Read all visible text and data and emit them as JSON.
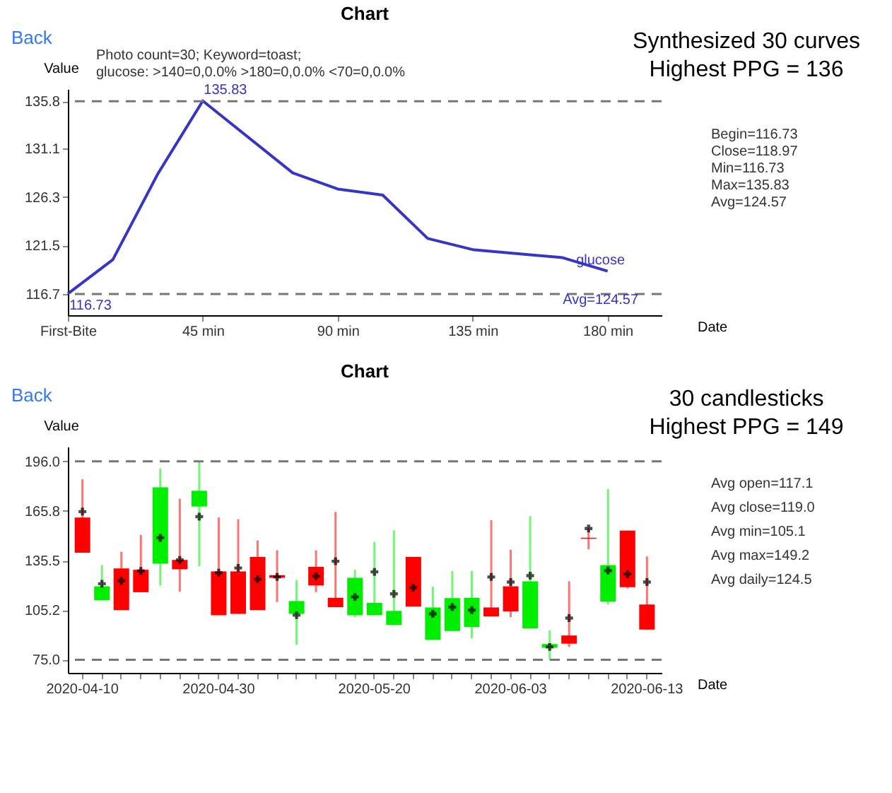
{
  "chart_data": [
    {
      "type": "line",
      "title": "Chart",
      "xlabel": "Date",
      "ylabel": "Value",
      "x": [
        0,
        15,
        30,
        45,
        75,
        90,
        105,
        120,
        135,
        165,
        180
      ],
      "series": [
        {
          "name": "glucose",
          "color": "#3535c8",
          "values": [
            116.73,
            120.1,
            128.6,
            135.83,
            128.7,
            127.1,
            126.5,
            122.2,
            121.1,
            120.3,
            118.97
          ],
          "value_labels": [
            "116.73",
            null,
            null,
            "135.83",
            null,
            null,
            null,
            null,
            null,
            null,
            null
          ]
        }
      ],
      "xlim": [
        0,
        198
      ],
      "xticks": [
        {
          "value": 0,
          "label": "First-Bite"
        },
        {
          "value": 45,
          "label": "45 min"
        },
        {
          "value": 90,
          "label": "90 min"
        },
        {
          "value": 135,
          "label": "135 min"
        },
        {
          "value": 180,
          "label": "180 min"
        }
      ],
      "ylim": [
        114.6,
        137
      ],
      "yticks": [
        116.7,
        121.5,
        126.3,
        131.1,
        135.8
      ],
      "ref_lines": [
        {
          "axis": "y",
          "value": 135.8,
          "color": "#777777",
          "line_style": "dashed"
        },
        {
          "axis": "y",
          "value": 116.7,
          "color": "#777777",
          "line_style": "dashed"
        }
      ],
      "grid": false,
      "legend": false,
      "marker": "none",
      "line_style": "solid",
      "annotations": [
        "Back",
        "Photo count=30; Keyword=toast;",
        "glucose: >140=0,0.0% >180=0,0.0% <70=0,0.0%",
        "Synthesized 30 curves",
        "Highest PPG = 136",
        "Begin=116.73",
        "Close=118.97",
        "Min=116.73",
        "Max=135.83",
        "Avg=124.57",
        {
          "text": "Avg=124.57",
          "x": 180,
          "y": 118.97
        }
      ]
    },
    {
      "type": "candlestick",
      "title": "Chart",
      "xlabel": "Date",
      "ylabel": "Value",
      "categories": [
        "2020-04-10",
        null,
        null,
        null,
        null,
        null,
        null,
        "2020-04-30",
        null,
        null,
        null,
        null,
        null,
        null,
        null,
        "2020-05-20",
        null,
        null,
        null,
        null,
        null,
        null,
        "2020-06-03",
        null,
        null,
        null,
        null,
        null,
        null,
        "2020-06-13"
      ],
      "ohlc": [
        [
          161.8,
          185.1,
          140.3,
          140.3
        ],
        [
          111.3,
          132.8,
          111.3,
          119.8
        ],
        [
          130.7,
          140.8,
          105.3,
          105.3
        ],
        [
          129.9,
          151.2,
          116.2,
          116.2
        ],
        [
          133.6,
          191.6,
          120.3,
          180.2
        ],
        [
          135.9,
          173.2,
          116.5,
          130.2
        ],
        [
          168.5,
          195.5,
          132.0,
          178.1
        ],
        [
          128.9,
          161.8,
          102.2,
          102.2
        ],
        [
          128.9,
          160.8,
          103.0,
          103.0
        ],
        [
          137.7,
          147.8,
          105.3,
          105.3
        ],
        [
          126.6,
          141.8,
          110.2,
          125.0
        ],
        [
          103.0,
          123.7,
          84.1,
          110.8
        ],
        [
          131.7,
          141.8,
          116.2,
          120.3
        ],
        [
          112.8,
          165.2,
          107.1,
          107.1
        ],
        [
          102.2,
          129.9,
          100.9,
          125.0
        ],
        [
          102.2,
          146.8,
          102.2,
          109.7
        ],
        [
          96.2,
          154.0,
          96.2,
          104.8
        ],
        [
          137.7,
          137.7,
          107.4,
          107.4
        ],
        [
          87.2,
          119.6,
          87.2,
          106.9
        ],
        [
          92.6,
          129.2,
          92.6,
          112.6
        ],
        [
          95.0,
          129.2,
          88.0,
          112.8
        ],
        [
          106.9,
          160.2,
          101.4,
          101.4
        ],
        [
          119.8,
          142.1,
          100.9,
          104.5
        ],
        [
          94.2,
          162.6,
          94.2,
          122.9
        ],
        [
          82.3,
          92.9,
          75.0,
          84.6
        ],
        [
          89.8,
          122.9,
          82.8,
          84.8
        ],
        [
          149.4,
          155.6,
          142.4,
          148.8
        ],
        [
          110.5,
          179.2,
          108.7,
          132.8
        ],
        [
          153.8,
          153.8,
          118.5,
          119.3
        ],
        [
          108.7,
          138.0,
          93.4,
          93.4
        ]
      ],
      "colors": [
        "#ff0000",
        "#00ee00",
        "#ff0000",
        "#ff0000",
        "#00ee00",
        "#ff0000",
        "#00ee00",
        "#ff0000",
        "#ff0000",
        "#ff0000",
        "#ff0000",
        "#00ee00",
        "#ff0000",
        "#ff0000",
        "#00ee00",
        "#00ee00",
        "#00ee00",
        "#ff0000",
        "#00ee00",
        "#00ee00",
        "#00ee00",
        "#ff0000",
        "#ff0000",
        "#00ee00",
        "#00ee00",
        "#ff0000",
        "#ff0000",
        "#00ee00",
        "#ff0000",
        "#ff0000"
      ],
      "series": [
        {
          "type": "scatter",
          "color": "#000000",
          "values": [
            165.4,
            121.4,
            123.2,
            129.2,
            149.4,
            135.9,
            162.3,
            128.1,
            131.0,
            124.2,
            125.5,
            102.2,
            126.0,
            135.1,
            113.3,
            128.6,
            115.2,
            119.0,
            103.0,
            107.1,
            105.3,
            125.5,
            122.4,
            126.3,
            82.8,
            100.4,
            155.1,
            129.4,
            127.3,
            122.4
          ]
        }
      ],
      "marker": "cross",
      "ylim": [
        67,
        205
      ],
      "yticks": [
        {
          "value": 75,
          "label": "75.0"
        },
        105.2,
        135.5,
        165.8,
        {
          "value": 196,
          "label": "196.0"
        }
      ],
      "ref_lines": [
        {
          "axis": "y",
          "value": 196,
          "color": "#777777",
          "line_style": "dashed"
        },
        {
          "axis": "y",
          "value": 75,
          "color": "#777777",
          "line_style": "dashed"
        }
      ],
      "grid": false,
      "legend": false,
      "annotations": [
        "Back",
        "30 candlesticks",
        "Highest PPG = 149",
        "Avg open=117.1",
        "Avg close=119.0",
        "Avg min=105.1",
        "Avg max=149.2",
        "Avg daily=124.5"
      ]
    }
  ]
}
